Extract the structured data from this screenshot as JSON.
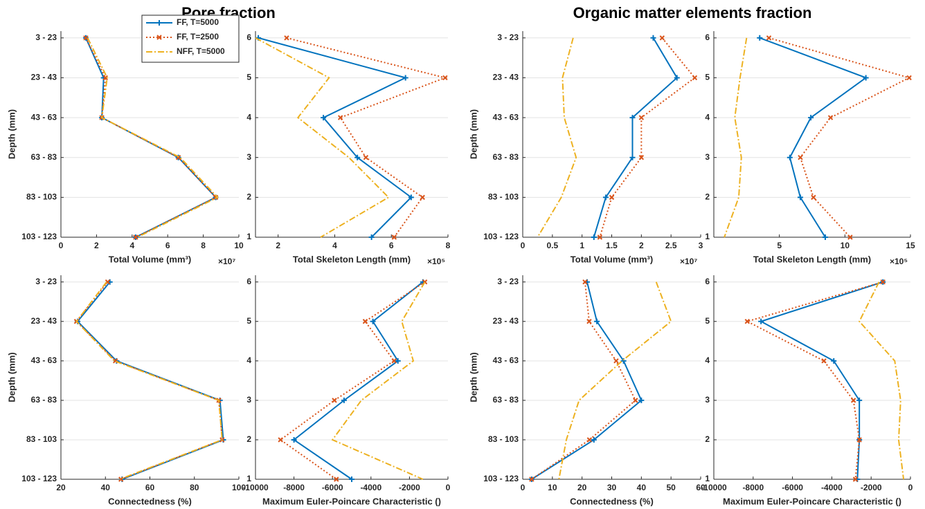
{
  "titles": [
    "Pore fraction",
    "Organic matter elements fraction"
  ],
  "chart_data": [
    {
      "type": "line",
      "orientation": "horizontal",
      "legend": "upper right",
      "grid": "y",
      "categories": [
        "3 - 23",
        "23 - 43",
        "43 - 63",
        "63 - 83",
        "83 - 103",
        "103 - 123"
      ],
      "series": [
        {
          "name": "FF, T=5000",
          "color": "#0072bd",
          "line": "solid",
          "marker": "+",
          "values": [
            1.4,
            2.4,
            2.3,
            6.6,
            8.7,
            4.2
          ]
        },
        {
          "name": "FF, T=2500",
          "color": "#d95319",
          "line": "dotted",
          "marker": "x",
          "values": [
            1.4,
            2.5,
            2.3,
            6.6,
            8.7,
            4.2
          ]
        },
        {
          "name": "NFF, T=5000",
          "color": "#edb120",
          "line": "dashdot",
          "values": [
            1.5,
            2.6,
            2.3,
            6.7,
            8.8,
            4.3
          ]
        }
      ],
      "xlim": [
        0,
        10
      ],
      "xticks": [
        0,
        2,
        4,
        6,
        8,
        10
      ],
      "xlabel": "Total Volume (mm³)",
      "x_exponent": "×10⁷",
      "ylabel": "Depth (mm)"
    },
    {
      "type": "line",
      "orientation": "horizontal",
      "grid": "y",
      "y": [
        6,
        5,
        4,
        3,
        2,
        1
      ],
      "ylim": [
        1,
        6.17
      ],
      "yticks": [
        1,
        2,
        3,
        4,
        5,
        6
      ],
      "series": [
        {
          "color": "#0072bd",
          "line": "solid",
          "marker": "+",
          "values": [
            1.3,
            6.5,
            3.6,
            4.8,
            6.7,
            5.3
          ]
        },
        {
          "color": "#d95319",
          "line": "dotted",
          "marker": "x",
          "values": [
            2.3,
            7.9,
            4.2,
            5.1,
            7.1,
            6.1
          ]
        },
        {
          "color": "#edb120",
          "line": "dashdot",
          "values": [
            1.2,
            3.8,
            2.7,
            4.5,
            5.9,
            3.5
          ]
        }
      ],
      "xlim": [
        1.2,
        8
      ],
      "xticks": [
        2,
        4,
        6,
        8
      ],
      "xlabel": "Total Skeleton Length (mm)",
      "x_exponent": "×10⁵"
    },
    {
      "type": "line",
      "orientation": "horizontal",
      "grid": "y",
      "categories": [
        "3 - 23",
        "23 - 43",
        "43 - 63",
        "63 - 83",
        "83 - 103",
        "103 - 123"
      ],
      "series": [
        {
          "color": "#0072bd",
          "line": "solid",
          "marker": "+",
          "values": [
            2.2,
            2.6,
            1.85,
            1.85,
            1.4,
            1.2
          ]
        },
        {
          "color": "#d95319",
          "line": "dotted",
          "marker": "x",
          "values": [
            2.35,
            2.9,
            2.0,
            2.0,
            1.5,
            1.3
          ]
        },
        {
          "color": "#edb120",
          "line": "dashdot",
          "values": [
            0.85,
            0.67,
            0.7,
            0.9,
            0.65,
            0.25
          ]
        }
      ],
      "xlim": [
        0,
        3
      ],
      "xticks": [
        0,
        0.5,
        1,
        1.5,
        2,
        2.5,
        3
      ],
      "xlabel": "Total Volume (mm³)",
      "x_exponent": "×10⁷",
      "ylabel": "Depth (mm)"
    },
    {
      "type": "line",
      "orientation": "horizontal",
      "grid": "y",
      "y": [
        6,
        5,
        4,
        3,
        2,
        1
      ],
      "ylim": [
        1,
        6.17
      ],
      "yticks": [
        1,
        2,
        3,
        4,
        5,
        6
      ],
      "series": [
        {
          "color": "#0072bd",
          "line": "solid",
          "marker": "+",
          "values": [
            3.5,
            11.6,
            7.4,
            5.8,
            6.6,
            8.5
          ]
        },
        {
          "color": "#d95319",
          "line": "dotted",
          "marker": "x",
          "values": [
            4.2,
            14.9,
            8.9,
            6.6,
            7.6,
            10.4
          ]
        },
        {
          "color": "#edb120",
          "line": "dashdot",
          "values": [
            2.5,
            2.0,
            1.6,
            2.1,
            1.9,
            0.8
          ]
        }
      ],
      "xlim": [
        0,
        15
      ],
      "xticks": [
        5,
        10,
        15
      ],
      "xlabel": "Total Skeleton Length (mm)",
      "x_exponent": "×10⁵"
    },
    {
      "type": "line",
      "orientation": "horizontal",
      "grid": "y",
      "categories": [
        "3 - 23",
        "23 - 43",
        "43 - 63",
        "63 - 83",
        "83 - 103",
        "103 - 123"
      ],
      "series": [
        {
          "color": "#0072bd",
          "line": "solid",
          "marker": "+",
          "values": [
            42,
            27.5,
            45,
            91.5,
            93,
            47.5
          ]
        },
        {
          "color": "#d95319",
          "line": "dotted",
          "marker": "x",
          "values": [
            41,
            27,
            44.5,
            91,
            92.5,
            47
          ]
        },
        {
          "color": "#edb120",
          "line": "dashdot",
          "values": [
            40.5,
            27,
            44,
            91,
            92.5,
            46.5
          ]
        }
      ],
      "xlim": [
        20,
        100
      ],
      "xticks": [
        20,
        40,
        60,
        80,
        100
      ],
      "xlabel": "Connectedness (%)",
      "ylabel": "Depth (mm)"
    },
    {
      "type": "line",
      "orientation": "horizontal",
      "grid": "y",
      "y": [
        6,
        5,
        4,
        3,
        2,
        1
      ],
      "ylim": [
        1,
        6.17
      ],
      "yticks": [
        1,
        2,
        3,
        4,
        5,
        6
      ],
      "series": [
        {
          "color": "#0072bd",
          "line": "solid",
          "marker": "+",
          "values": [
            -1300,
            -3900,
            -2600,
            -5400,
            -8000,
            -5000
          ]
        },
        {
          "color": "#d95319",
          "line": "dotted",
          "marker": "x",
          "values": [
            -1200,
            -4300,
            -2800,
            -5900,
            -8700,
            -5800
          ]
        },
        {
          "color": "#edb120",
          "line": "dashdot",
          "values": [
            -1200,
            -2400,
            -1800,
            -4500,
            -6000,
            -1300
          ]
        }
      ],
      "xlim": [
        -10000,
        0
      ],
      "xticks": [
        -10000,
        -8000,
        -6000,
        -4000,
        -2000,
        0
      ],
      "xlabel": "Maximum Euler-Poincare Characteristic ()"
    },
    {
      "type": "line",
      "orientation": "horizontal",
      "grid": "y",
      "categories": [
        "3 - 23",
        "23 - 43",
        "43 - 63",
        "63 - 83",
        "83 - 103",
        "103 - 123"
      ],
      "series": [
        {
          "color": "#0072bd",
          "line": "solid",
          "marker": "+",
          "values": [
            21.7,
            25,
            34,
            40,
            24,
            3
          ]
        },
        {
          "color": "#d95319",
          "line": "dotted",
          "marker": "x",
          "values": [
            21,
            22.4,
            31.5,
            38,
            22.5,
            3
          ]
        },
        {
          "color": "#edb120",
          "line": "dashdot",
          "values": [
            45,
            50,
            33.5,
            19,
            14.7,
            12.2
          ]
        }
      ],
      "xlim": [
        0,
        60
      ],
      "xticks": [
        0,
        10,
        20,
        30,
        40,
        50,
        60
      ],
      "xlabel": "Connectedness (%)",
      "ylabel": "Depth (mm)"
    },
    {
      "type": "line",
      "orientation": "horizontal",
      "grid": "y",
      "y": [
        6,
        5,
        4,
        3,
        2,
        1
      ],
      "ylim": [
        1,
        6.17
      ],
      "yticks": [
        1,
        2,
        3,
        4,
        5,
        6
      ],
      "series": [
        {
          "color": "#0072bd",
          "line": "solid",
          "marker": "+",
          "values": [
            -1400,
            -7600,
            -3900,
            -2600,
            -2600,
            -2700
          ]
        },
        {
          "color": "#d95319",
          "line": "dotted",
          "marker": "x",
          "values": [
            -1400,
            -8300,
            -4400,
            -2900,
            -2600,
            -2800
          ]
        },
        {
          "color": "#edb120",
          "line": "dashdot",
          "values": [
            -1600,
            -2600,
            -800,
            -500,
            -600,
            -350
          ]
        }
      ],
      "xlim": [
        -10000,
        0
      ],
      "xticks": [
        -10000,
        -8000,
        -6000,
        -4000,
        -2000,
        0
      ],
      "xlabel": "Maximum Euler-Poincare Characteristic ()"
    }
  ]
}
